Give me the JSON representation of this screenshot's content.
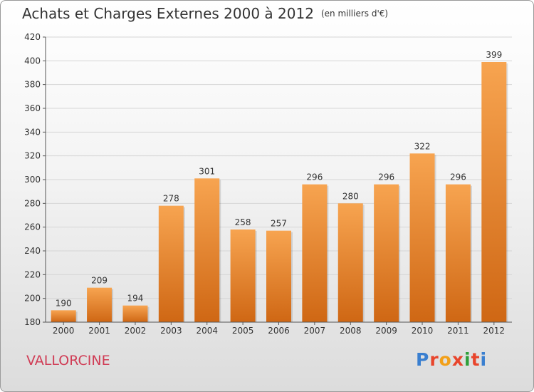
{
  "header": {
    "title": "Achats et Charges Externes 2000 à 2012",
    "unit": "(en milliers d'€)"
  },
  "footer": {
    "commune": "VALLORCINE",
    "brand_letters": [
      "P",
      "r",
      "o",
      "x",
      "i",
      "t",
      "i"
    ]
  },
  "colors": {
    "bar_top": "#f7a450",
    "bar_bottom": "#cf6714",
    "grid": "#d6d6d6",
    "axis": "#555555",
    "commune": "#d03c55",
    "brand": [
      "#3a7fd0",
      "#e8452c",
      "#f2a019",
      "#e8452c",
      "#2f9f3a",
      "#e8452c",
      "#3a7fd0"
    ]
  },
  "chart_data": {
    "type": "bar",
    "title": "Achats et Charges Externes 2000 à 2012",
    "ylabel": "en milliers d'€",
    "categories": [
      "2000",
      "2001",
      "2002",
      "2003",
      "2004",
      "2005",
      "2006",
      "2007",
      "2008",
      "2009",
      "2010",
      "2011",
      "2012"
    ],
    "values": [
      190,
      209,
      194,
      278,
      301,
      258,
      257,
      296,
      280,
      296,
      322,
      296,
      399
    ],
    "ylim": [
      180,
      420
    ],
    "yticks": [
      180,
      200,
      220,
      240,
      260,
      280,
      300,
      320,
      340,
      360,
      380,
      400,
      420
    ],
    "grid": true
  }
}
